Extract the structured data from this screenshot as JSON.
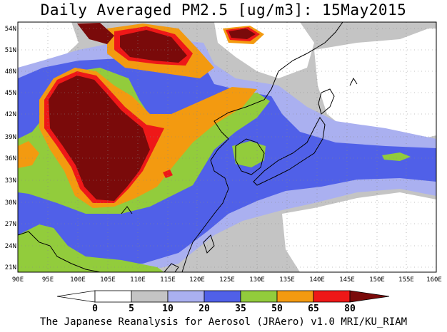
{
  "title": "Daily Averaged PM2.5 [ug/m3]: 15May2015",
  "credit": "The Japanese Reanalysis for Aerosol (JRAero) v1.0 MRI/KU_RIAM",
  "map": {
    "lat_labels": [
      "54N",
      "51N",
      "48N",
      "45N",
      "42N",
      "39N",
      "36N",
      "33N",
      "30N",
      "27N",
      "24N",
      "21N"
    ],
    "lon_labels": [
      "90E",
      "95E",
      "100E",
      "105E",
      "110E",
      "115E",
      "120E",
      "125E",
      "130E",
      "135E",
      "140E",
      "145E",
      "150E",
      "155E",
      "160E"
    ],
    "lat_range": [
      20,
      55
    ],
    "lon_range": [
      90,
      160
    ]
  },
  "legend": {
    "ticks": [
      "0",
      "5",
      "10",
      "20",
      "35",
      "50",
      "65",
      "80"
    ],
    "bins": [
      {
        "range": "<0",
        "color": "#ffffff"
      },
      {
        "range": "0-5",
        "color": "#ffffff"
      },
      {
        "range": "5-10",
        "color": "#c4c4c4"
      },
      {
        "range": "10-20",
        "color": "#aab0f0"
      },
      {
        "range": "20-35",
        "color": "#5060e8"
      },
      {
        "range": "35-50",
        "color": "#92cc3c"
      },
      {
        "range": "50-65",
        "color": "#f39a10"
      },
      {
        "range": "65-80",
        "color": "#ee1818"
      },
      {
        "range": ">80",
        "color": "#7a0a0a"
      }
    ]
  },
  "colors": {
    "c5": "#c4c4c4",
    "c10": "#aab0f0",
    "c20": "#5060e8",
    "c35": "#92cc3c",
    "c50": "#f39a10",
    "c65": "#ee1818",
    "c80": "#7a0a0a"
  }
}
